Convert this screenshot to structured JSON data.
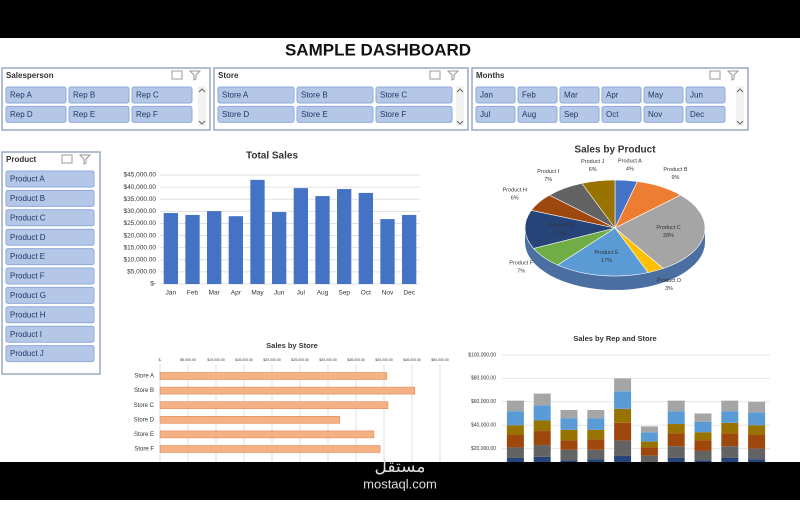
{
  "title": "SAMPLE DASHBOARD",
  "slicers": [
    {
      "title": "Salesperson",
      "items": [
        "Rep A",
        "Rep B",
        "Rep C",
        "Rep D",
        "Rep E",
        "Rep F"
      ]
    },
    {
      "title": "Store",
      "items": [
        "Store A",
        "Store B",
        "Store C",
        "Store D",
        "Store E",
        "Store F"
      ]
    },
    {
      "title": "Months",
      "items": [
        "Jan",
        "Feb",
        "Mar",
        "Apr",
        "May",
        "Jun",
        "Jul",
        "Aug",
        "Sep",
        "Oct",
        "Nov",
        "Dec"
      ]
    },
    {
      "title": "Product",
      "items": [
        "Product A",
        "Product B",
        "Product C",
        "Product D",
        "Product E",
        "Product F",
        "Product G",
        "Product H",
        "Product I",
        "Product J"
      ]
    }
  ],
  "chart_data": [
    {
      "type": "bar",
      "title": "Total Sales",
      "color": "#4472c4",
      "grid": true,
      "categories": [
        "Jan",
        "Feb",
        "Mar",
        "Apr",
        "May",
        "Jun",
        "Jul",
        "Aug",
        "Sep",
        "Oct",
        "Nov",
        "Dec"
      ],
      "values": [
        29300,
        28500,
        30100,
        28000,
        43000,
        29700,
        39600,
        36300,
        39200,
        37600,
        26800,
        28500
      ],
      "ylim": [
        0,
        45000
      ],
      "yticks": [
        {
          "value": 0,
          "label": "$-"
        },
        {
          "value": 5000,
          "label": "$5,000.00"
        },
        {
          "value": 10000,
          "label": "$10,000.00"
        },
        {
          "value": 15000,
          "label": "$15,000.00"
        },
        {
          "value": 20000,
          "label": "$20,000.00"
        },
        {
          "value": 25000,
          "label": "$25,000.00"
        },
        {
          "value": 30000,
          "label": "$30,000.00"
        },
        {
          "value": 35000,
          "label": "$35,000.00"
        },
        {
          "value": 40000,
          "label": "$40,000.00"
        },
        {
          "value": 45000,
          "label": "$45,000.00"
        }
      ]
    },
    {
      "type": "pie",
      "title": "Sales by Product",
      "categories": [
        "Product A",
        "Product B",
        "Product C",
        "Product D",
        "Product E",
        "Product F",
        "Product G",
        "Product H",
        "Product I",
        "Product J"
      ],
      "values": [
        4,
        9,
        28,
        3,
        17,
        7,
        13,
        6,
        7,
        6
      ],
      "value_labels": [
        "4%",
        "9%",
        "28%",
        "3%",
        "17%",
        "7%",
        "13%",
        "6%",
        "7%",
        "6%"
      ],
      "colors": [
        "#4472c4",
        "#ed7d31",
        "#a5a5a5",
        "#ffc000",
        "#5b9bd5",
        "#70ad47",
        "#264478",
        "#9e480e",
        "#636363",
        "#997300"
      ]
    },
    {
      "type": "hbar",
      "title": "Sales by Store",
      "color": "#f4b183",
      "grid": true,
      "categories": [
        "Store A",
        "Store B",
        "Store C",
        "Store D",
        "Store E",
        "Store F"
      ],
      "values": [
        40500,
        45500,
        40700,
        32100,
        38200,
        39300
      ],
      "xlim": [
        0,
        50000
      ],
      "xticks": [
        {
          "value": 0,
          "label": "$-"
        },
        {
          "value": 5000,
          "label": "$5,000.00"
        },
        {
          "value": 10000,
          "label": "$10,000.00"
        },
        {
          "value": 15000,
          "label": "$15,000.00"
        },
        {
          "value": 20000,
          "label": "$20,000.00"
        },
        {
          "value": 25000,
          "label": "$25,000.00"
        },
        {
          "value": 30000,
          "label": "$30,000.00"
        },
        {
          "value": 35000,
          "label": "$35,000.00"
        },
        {
          "value": 40000,
          "label": "$40,000.00"
        },
        {
          "value": 45000,
          "label": "$45,000.00"
        },
        {
          "value": 50000,
          "label": "$50,000.00"
        }
      ]
    },
    {
      "type": "stacked_bar",
      "title": "Sales by Rep and Store",
      "grid": true,
      "categories": [
        null,
        null,
        null,
        null,
        null,
        null,
        null,
        null,
        null,
        null
      ],
      "series": [
        {
          "color": "#264478",
          "values": [
            12000,
            13000,
            10000,
            11000,
            14000,
            8000,
            12000,
            10000,
            12000,
            11000
          ]
        },
        {
          "color": "#636363",
          "values": [
            9000,
            10000,
            9000,
            8000,
            13000,
            6000,
            10000,
            8000,
            10000,
            9000
          ]
        },
        {
          "color": "#9e480e",
          "values": [
            11000,
            12000,
            8000,
            9000,
            15000,
            7000,
            11000,
            9000,
            11000,
            12000
          ]
        },
        {
          "color": "#997300",
          "values": [
            8000,
            9000,
            9000,
            8000,
            12000,
            5000,
            8000,
            7000,
            9000,
            8000
          ]
        },
        {
          "color": "#5b9bd5",
          "values": [
            12000,
            13000,
            10000,
            10000,
            15000,
            8000,
            11000,
            9000,
            10000,
            11000
          ]
        },
        {
          "color": "#a5a5a5",
          "values": [
            9000,
            10000,
            7000,
            7000,
            11000,
            5000,
            9000,
            7000,
            9000,
            9000
          ]
        }
      ],
      "ylim": [
        0,
        100000
      ],
      "yticks": [
        {
          "value": 20000,
          "label": "$20,000.00"
        },
        {
          "value": 40000,
          "label": "$40,000.00"
        },
        {
          "value": 60000,
          "label": "$60,000.00"
        },
        {
          "value": 80000,
          "label": "$80,000.00"
        },
        {
          "value": 100000,
          "label": "$100,000.00"
        }
      ]
    }
  ],
  "watermark": {
    "arabic": "مستقل",
    "site": "mostaql.com"
  }
}
